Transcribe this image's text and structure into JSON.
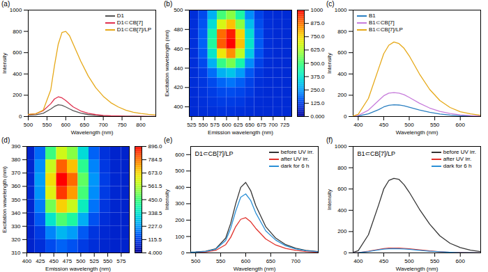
{
  "chart_data": [
    {
      "type": "line",
      "panel": "(a)",
      "xlabel": "Wavelength (nm)",
      "ylabel": "Intensity",
      "xlim": [
        500,
        840
      ],
      "xticks": [
        500,
        550,
        600,
        650,
        700,
        750,
        800
      ],
      "ylim": [
        0,
        1000
      ],
      "yticks": [
        0,
        200,
        400,
        600,
        800,
        1000
      ],
      "grid": false,
      "legend": "top-right",
      "x": [
        500,
        520,
        540,
        560,
        570,
        580,
        590,
        600,
        610,
        620,
        640,
        660,
        680,
        700,
        720,
        740,
        760,
        780,
        800,
        820,
        840
      ],
      "series": [
        {
          "name": "D1",
          "color": "#555555",
          "values": [
            12,
            15,
            30,
            70,
            95,
            110,
            105,
            90,
            72,
            55,
            32,
            18,
            10,
            6,
            4,
            3,
            2,
            2,
            1,
            1,
            1
          ]
        },
        {
          "name": "D1⊂CB[7]",
          "color": "#e0304e",
          "values": [
            18,
            25,
            55,
            120,
            165,
            185,
            175,
            150,
            120,
            90,
            52,
            30,
            18,
            11,
            7,
            5,
            3,
            2,
            2,
            1,
            1
          ]
        },
        {
          "name": "D1⊂CB[7]/LP",
          "color": "#e6a817",
          "values": [
            20,
            25,
            60,
            250,
            480,
            680,
            790,
            800,
            760,
            680,
            520,
            380,
            270,
            190,
            130,
            90,
            60,
            40,
            28,
            20,
            15
          ]
        }
      ]
    },
    {
      "type": "heatmap",
      "panel": "(b)",
      "xlabel": "Emission wavelength (nm)",
      "ylabel": "Excitation wavelength (nm)",
      "xlim": [
        520,
        740
      ],
      "xticks": [
        525,
        550,
        575,
        600,
        625,
        650,
        675,
        700,
        725
      ],
      "ylim": [
        390,
        500
      ],
      "yticks": [
        400,
        420,
        440,
        460,
        480,
        500
      ],
      "grid": false,
      "x": [
        530,
        550,
        570,
        590,
        610,
        630,
        650,
        670,
        690,
        710,
        730
      ],
      "y": [
        395,
        405,
        415,
        425,
        435,
        445,
        455,
        465,
        475,
        485,
        495
      ],
      "z": [
        [
          90,
          95,
          100,
          105,
          105,
          100,
          95,
          90,
          90,
          90,
          90
        ],
        [
          90,
          100,
          110,
          120,
          120,
          115,
          100,
          92,
          90,
          90,
          90
        ],
        [
          92,
          105,
          120,
          140,
          145,
          135,
          115,
          95,
          90,
          90,
          90
        ],
        [
          95,
          110,
          140,
          180,
          200,
          170,
          130,
          100,
          92,
          90,
          90
        ],
        [
          95,
          120,
          190,
          280,
          310,
          250,
          160,
          110,
          92,
          90,
          90
        ],
        [
          98,
          140,
          280,
          480,
          560,
          430,
          230,
          130,
          95,
          90,
          90
        ],
        [
          100,
          160,
          380,
          720,
          840,
          640,
          320,
          150,
          100,
          90,
          90
        ],
        [
          100,
          175,
          450,
          900,
          1000,
          780,
          380,
          165,
          100,
          90,
          90
        ],
        [
          100,
          170,
          430,
          880,
          970,
          750,
          360,
          160,
          100,
          90,
          90
        ],
        [
          98,
          155,
          360,
          680,
          780,
          580,
          300,
          145,
          98,
          90,
          90
        ],
        [
          95,
          140,
          280,
          500,
          580,
          440,
          230,
          130,
          95,
          90,
          90
        ]
      ],
      "colorbar_lim": [
        0,
        1000
      ],
      "colorbar_ticks": [
        {
          "value": 0,
          "label": "0.000"
        },
        {
          "value": 125,
          "label": "125.0"
        },
        {
          "value": 250,
          "label": "250.0"
        },
        {
          "value": 375,
          "label": "375.0"
        },
        {
          "value": 500,
          "label": "500.0"
        },
        {
          "value": 625,
          "label": "625.0"
        },
        {
          "value": 750,
          "label": "750.0"
        },
        {
          "value": 875,
          "label": "875.0"
        },
        1000
      ]
    },
    {
      "type": "line",
      "panel": "(c)",
      "xlabel": "Wavelength (nm)",
      "ylabel": "Intensity",
      "xlim": [
        390,
        640
      ],
      "xticks": [
        400,
        450,
        500,
        550,
        600
      ],
      "ylim": [
        0,
        1000
      ],
      "yticks": [
        0,
        200,
        400,
        600,
        800,
        1000
      ],
      "grid": false,
      "legend": "top-left",
      "x": [
        390,
        400,
        420,
        440,
        450,
        460,
        470,
        480,
        490,
        500,
        520,
        540,
        560,
        580,
        600,
        620,
        640
      ],
      "series": [
        {
          "name": "B1",
          "color": "#2a7fc1",
          "values": [
            2,
            5,
            25,
            65,
            90,
            105,
            110,
            108,
            100,
            88,
            62,
            40,
            24,
            14,
            8,
            5,
            3
          ]
        },
        {
          "name": "B1⊂CB[7]",
          "color": "#c77cdb",
          "values": [
            3,
            10,
            60,
            150,
            195,
            220,
            225,
            220,
            205,
            180,
            125,
            80,
            48,
            28,
            16,
            9,
            5
          ]
        },
        {
          "name": "B1⊂CB[7]/LP",
          "color": "#e6a817",
          "values": [
            5,
            20,
            170,
            450,
            590,
            670,
            700,
            685,
            640,
            570,
            400,
            255,
            150,
            85,
            45,
            25,
            12
          ]
        }
      ]
    },
    {
      "type": "heatmap",
      "panel": "(d)",
      "xlabel": "Emission wavelength (nm)",
      "ylabel": "Excitation wavelength (nm)",
      "xlim": [
        400,
        590
      ],
      "xticks": [
        400,
        425,
        450,
        475,
        500,
        525,
        550,
        575
      ],
      "ylim": [
        310,
        390
      ],
      "yticks": [
        310,
        320,
        330,
        340,
        350,
        360,
        370,
        380,
        390
      ],
      "grid": false,
      "x": [
        405,
        425,
        445,
        465,
        485,
        505,
        525,
        545,
        565,
        585
      ],
      "y": [
        315,
        325,
        335,
        345,
        355,
        365,
        375,
        385
      ],
      "z": [
        [
          70,
          90,
          130,
          160,
          140,
          110,
          90,
          75,
          70,
          70
        ],
        [
          70,
          110,
          200,
          260,
          230,
          150,
          100,
          80,
          70,
          70
        ],
        [
          72,
          150,
          340,
          460,
          400,
          250,
          140,
          90,
          72,
          70
        ],
        [
          75,
          190,
          500,
          680,
          590,
          360,
          180,
          100,
          75,
          70
        ],
        [
          78,
          220,
          620,
          840,
          740,
          450,
          210,
          110,
          78,
          72
        ],
        [
          78,
          230,
          660,
          896,
          790,
          480,
          220,
          112,
          78,
          72
        ],
        [
          75,
          210,
          590,
          800,
          700,
          420,
          200,
          105,
          75,
          70
        ],
        [
          72,
          170,
          440,
          600,
          520,
          320,
          160,
          95,
          72,
          70
        ]
      ],
      "colorbar_lim": [
        4,
        896
      ],
      "colorbar_ticks": [
        {
          "value": 4,
          "label": "4.000"
        },
        {
          "value": 115.5,
          "label": "115.5"
        },
        {
          "value": 227,
          "label": "227.0"
        },
        338.5,
        {
          "value": 450,
          "label": "450.0"
        },
        561.5,
        {
          "value": 673,
          "label": "673.0"
        },
        784.5,
        {
          "value": 896,
          "label": "896.0"
        }
      ]
    },
    {
      "type": "line",
      "panel": "(e)",
      "title": "D1⊂CB[7]/LP",
      "xlabel": "Wavelength (nm)",
      "ylabel": "Intensity",
      "xlim": [
        490,
        745
      ],
      "xticks": [
        500,
        550,
        600,
        650,
        700
      ],
      "ylim": [
        0,
        650
      ],
      "yticks": [
        0,
        100,
        200,
        300,
        400,
        500,
        600
      ],
      "grid": false,
      "legend": "top-right",
      "x": [
        490,
        500,
        520,
        540,
        560,
        570,
        580,
        590,
        600,
        610,
        620,
        640,
        660,
        680,
        700,
        720,
        745
      ],
      "series": [
        {
          "name": "before UV irr.",
          "color": "#333333",
          "values": [
            5,
            6,
            10,
            25,
            90,
            180,
            300,
            400,
            430,
            380,
            290,
            160,
            90,
            50,
            28,
            15,
            8
          ]
        },
        {
          "name": "after UV irr.",
          "color": "#e0302a",
          "values": [
            3,
            4,
            6,
            15,
            50,
            95,
            160,
            205,
            215,
            190,
            150,
            85,
            48,
            27,
            15,
            8,
            4
          ]
        },
        {
          "name": "dark for 6 h",
          "color": "#2a8fd6",
          "values": [
            4,
            5,
            9,
            22,
            75,
            150,
            255,
            340,
            360,
            320,
            245,
            135,
            78,
            43,
            24,
            13,
            7
          ]
        }
      ]
    },
    {
      "type": "line",
      "panel": "(f)",
      "title": "B1⊂CB[7]/LP",
      "xlabel": "Wavelength (nm)",
      "ylabel": "Intensity",
      "xlim": [
        390,
        640
      ],
      "xticks": [
        400,
        450,
        500,
        550,
        600
      ],
      "ylim": [
        0,
        1000
      ],
      "yticks": [
        0,
        200,
        400,
        600,
        800,
        1000
      ],
      "grid": false,
      "legend": "top-right",
      "x": [
        390,
        400,
        420,
        440,
        450,
        460,
        470,
        480,
        490,
        500,
        520,
        540,
        560,
        580,
        600,
        620,
        640
      ],
      "series": [
        {
          "name": "before UV irr.",
          "color": "#333333",
          "values": [
            5,
            20,
            170,
            450,
            600,
            680,
            700,
            690,
            640,
            570,
            410,
            270,
            160,
            90,
            50,
            25,
            12
          ]
        },
        {
          "name": "after UV irr.",
          "color": "#e0302a",
          "values": [
            1,
            3,
            15,
            32,
            40,
            44,
            45,
            44,
            42,
            38,
            28,
            18,
            11,
            6,
            4,
            2,
            1
          ]
        },
        {
          "name": "dark for 6 h",
          "color": "#2a8fd6",
          "values": [
            1,
            2,
            12,
            28,
            35,
            38,
            40,
            39,
            37,
            33,
            24,
            16,
            10,
            6,
            3,
            2,
            1
          ]
        }
      ]
    }
  ]
}
